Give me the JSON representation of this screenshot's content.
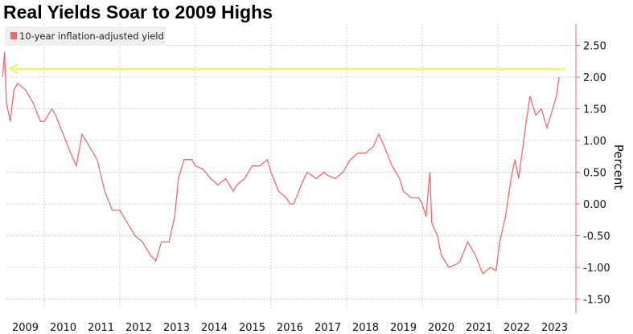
{
  "chart_data": {
    "type": "line",
    "title": "Real Yields Soar to 2009 Highs",
    "ylabel": "Percent",
    "xlabel": "",
    "ylim": [
      -1.6,
      2.8
    ],
    "y_ticks": [
      "2.50",
      "2.00",
      "1.50",
      "1.00",
      "0.50",
      "0.00",
      "-0.50",
      "-1.00",
      "-1.50"
    ],
    "x_ticks": [
      "2009",
      "2010",
      "2011",
      "2012",
      "2013",
      "2014",
      "2015",
      "2016",
      "2017",
      "2018",
      "2019",
      "2020",
      "2021",
      "2022",
      "2023"
    ],
    "grid": true,
    "legend_position": "top-left",
    "y_axis_side": "right",
    "colors": {
      "series": "#f06a6a",
      "arrow": "#f5f07a",
      "axis": "#f06a6a"
    },
    "annotation": {
      "type": "arrow",
      "y": 2.13,
      "from_x": 2023.8,
      "to_x": 2009.1
    },
    "series": [
      {
        "name": "10-year inflation-adjusted yield",
        "x": [
          2008.9,
          2008.95,
          2009.0,
          2009.1,
          2009.2,
          2009.3,
          2009.5,
          2009.7,
          2009.9,
          2010.0,
          2010.2,
          2010.3,
          2010.5,
          2010.7,
          2010.85,
          2011.0,
          2011.2,
          2011.4,
          2011.6,
          2011.8,
          2012.0,
          2012.2,
          2012.4,
          2012.6,
          2012.8,
          2012.95,
          2013.1,
          2013.3,
          2013.45,
          2013.55,
          2013.7,
          2013.9,
          2014.0,
          2014.2,
          2014.4,
          2014.6,
          2014.8,
          2015.0,
          2015.1,
          2015.3,
          2015.5,
          2015.7,
          2015.9,
          2016.0,
          2016.2,
          2016.4,
          2016.5,
          2016.6,
          2016.8,
          2016.95,
          2017.2,
          2017.4,
          2017.5,
          2017.7,
          2017.9,
          2018.1,
          2018.3,
          2018.5,
          2018.7,
          2018.85,
          2019.0,
          2019.2,
          2019.4,
          2019.5,
          2019.7,
          2019.9,
          2020.0,
          2020.1,
          2020.2,
          2020.25,
          2020.4,
          2020.5,
          2020.7,
          2020.9,
          2021.0,
          2021.2,
          2021.4,
          2021.6,
          2021.8,
          2021.95,
          2022.05,
          2022.2,
          2022.35,
          2022.45,
          2022.55,
          2022.75,
          2022.85,
          2023.0,
          2023.15,
          2023.3,
          2023.45,
          2023.55,
          2023.62
        ],
        "values": [
          2.0,
          2.4,
          1.6,
          1.3,
          1.8,
          1.9,
          1.8,
          1.6,
          1.3,
          1.3,
          1.5,
          1.4,
          1.1,
          0.8,
          0.6,
          1.1,
          0.9,
          0.7,
          0.2,
          -0.1,
          -0.1,
          -0.3,
          -0.5,
          -0.6,
          -0.8,
          -0.9,
          -0.6,
          -0.6,
          -0.2,
          0.4,
          0.7,
          0.7,
          0.6,
          0.55,
          0.4,
          0.3,
          0.4,
          0.2,
          0.3,
          0.4,
          0.6,
          0.6,
          0.7,
          0.5,
          0.2,
          0.1,
          0.0,
          0.0,
          0.3,
          0.5,
          0.4,
          0.5,
          0.45,
          0.4,
          0.5,
          0.7,
          0.8,
          0.8,
          0.9,
          1.1,
          0.9,
          0.6,
          0.4,
          0.2,
          0.1,
          0.1,
          0.0,
          -0.2,
          0.5,
          -0.3,
          -0.5,
          -0.8,
          -1.0,
          -0.95,
          -0.9,
          -0.6,
          -0.8,
          -1.1,
          -1.0,
          -1.05,
          -0.6,
          -0.2,
          0.4,
          0.7,
          0.4,
          1.3,
          1.7,
          1.4,
          1.5,
          1.2,
          1.5,
          1.7,
          2.0
        ]
      }
    ]
  }
}
